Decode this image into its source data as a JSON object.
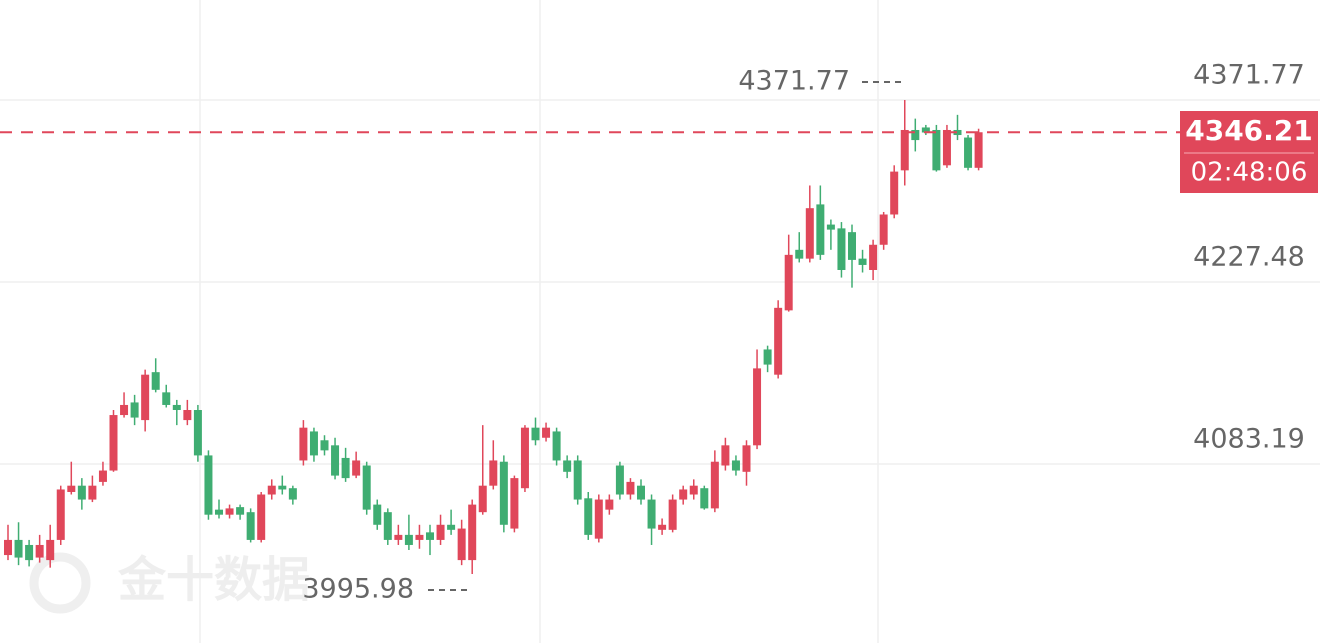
{
  "chart_data": {
    "type": "candlestick",
    "watermark": "金十数据",
    "countdown": "02:48:06",
    "up_color": "#e0475a",
    "down_color": "#3fad72",
    "ylim": [
      3941.28,
      4451.05
    ],
    "yticks": [
      4083.19,
      4227.48,
      4371.77
    ],
    "grid": true,
    "open": [
      4011,
      4023,
      4019,
      4009,
      4007,
      4023,
      4061,
      4066,
      4055,
      4069,
      4078,
      4122,
      4132,
      4118,
      4156,
      4140,
      4130,
      4118,
      4126,
      4090,
      4047,
      4043,
      4049,
      4045,
      4023,
      4059,
      4066,
      4064,
      4086,
      4109,
      4102,
      4098,
      4088,
      4074,
      4082,
      4051,
      4045,
      4023,
      4027,
      4023,
      4029,
      4023,
      4035,
      4007,
      4007,
      4045,
      4066,
      4085,
      4032,
      4064,
      4112,
      4104,
      4109,
      4086,
      4086,
      4056,
      4024,
      4047,
      4082,
      4059,
      4066,
      4055,
      4031,
      4031,
      4055,
      4059,
      4064,
      4048,
      4082,
      4086,
      4077,
      4098,
      4174,
      4154,
      4205,
      4253,
      4246,
      4289,
      4273,
      4270,
      4267,
      4246,
      4237,
      4257,
      4281,
      4316,
      4348,
      4350,
      4348,
      4320,
      4348,
      4342,
      4318
    ],
    "high": [
      4035,
      4037,
      4023,
      4027,
      4035,
      4066,
      4085,
      4072,
      4074,
      4085,
      4126,
      4140,
      4138,
      4158,
      4167,
      4146,
      4134,
      4134,
      4130,
      4094,
      4055,
      4051,
      4051,
      4048,
      4061,
      4071,
      4074,
      4066,
      4118,
      4112,
      4106,
      4104,
      4096,
      4093,
      4085,
      4055,
      4048,
      4035,
      4043,
      4035,
      4035,
      4043,
      4047,
      4039,
      4055,
      4114,
      4102,
      4090,
      4074,
      4114,
      4120,
      4116,
      4112,
      4090,
      4090,
      4061,
      4059,
      4059,
      4085,
      4072,
      4071,
      4059,
      4040,
      4059,
      4066,
      4071,
      4066,
      4094,
      4104,
      4090,
      4102,
      4174,
      4177,
      4213,
      4265,
      4267,
      4304,
      4304,
      4277,
      4275,
      4273,
      4253,
      4261,
      4283,
      4320,
      4371.77,
      4357,
      4352,
      4352,
      4352,
      4360,
      4344,
      4349
    ],
    "low": [
      4007,
      4003,
      4002,
      4005,
      4001,
      4019,
      4059,
      4047,
      4053,
      4066,
      4077,
      4120,
      4114,
      4109,
      4140,
      4128,
      4114,
      4114,
      4085,
      4039,
      4040,
      4040,
      4039,
      4021,
      4021,
      4055,
      4059,
      4051,
      4082,
      4085,
      4090,
      4071,
      4069,
      4072,
      4043,
      4031,
      4019,
      4019,
      4015,
      4016,
      4011,
      4019,
      4027,
      4003,
      3995.98,
      4043,
      4063,
      4029,
      4029,
      4061,
      4098,
      4101,
      4082,
      4072,
      4051,
      4023,
      4021,
      4043,
      4055,
      4055,
      4051,
      4019,
      4027,
      4029,
      4051,
      4055,
      4047,
      4045,
      4078,
      4074,
      4066,
      4095,
      4156,
      4151,
      4204,
      4243,
      4243,
      4245,
      4253,
      4231,
      4223,
      4235,
      4229,
      4253,
      4278,
      4304,
      4331,
      4344,
      4315,
      4318,
      4340,
      4316,
      4316
    ],
    "close": [
      4023,
      4009,
      4007,
      4019,
      4023,
      4063,
      4066,
      4055,
      4066,
      4078,
      4122,
      4130,
      4120,
      4154,
      4142,
      4130,
      4126,
      4126,
      4090,
      4043,
      4043,
      4048,
      4043,
      4023,
      4059,
      4066,
      4063,
      4055,
      4112,
      4090,
      4094,
      4074,
      4072,
      4086,
      4047,
      4035,
      4023,
      4027,
      4019,
      4027,
      4023,
      4035,
      4031,
      4032,
      4051,
      4066,
      4086,
      4035,
      4072,
      4112,
      4102,
      4112,
      4086,
      4077,
      4055,
      4027,
      4055,
      4055,
      4059,
      4069,
      4055,
      4032,
      4035,
      4055,
      4063,
      4066,
      4048,
      4085,
      4098,
      4078,
      4098,
      4159,
      4162,
      4207,
      4249,
      4246,
      4286,
      4249,
      4269,
      4237,
      4245,
      4241,
      4257,
      4281,
      4315,
      4348,
      4340,
      4346,
      4316,
      4348,
      4344,
      4318,
      4346.21
    ]
  }
}
